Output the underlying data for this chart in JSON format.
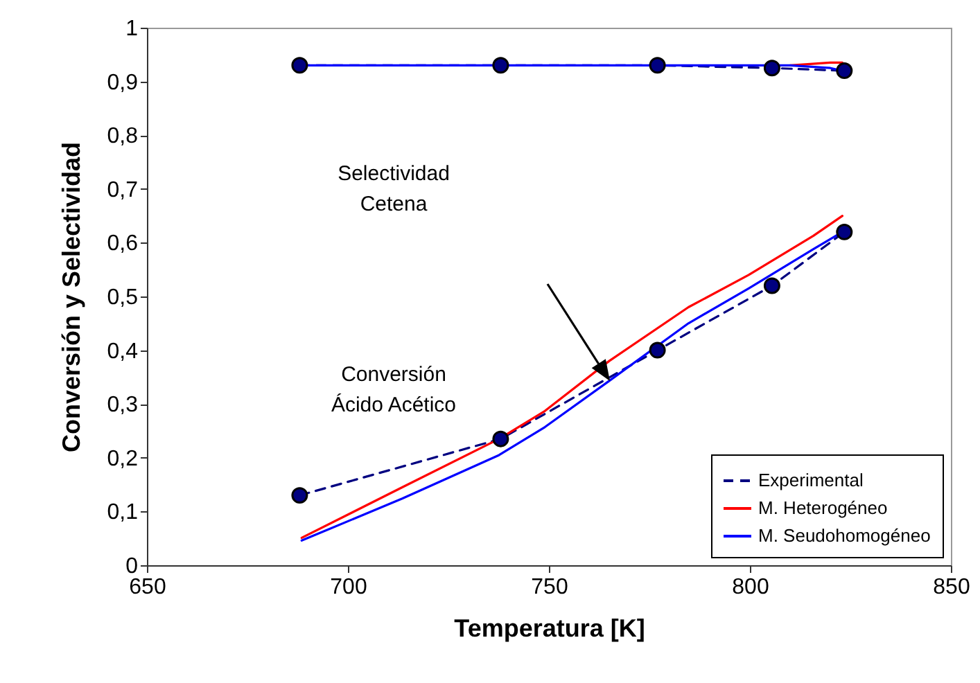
{
  "chart_data": {
    "type": "line",
    "xlabel": "Temperatura [K]",
    "ylabel": "Conversión y Selectividad",
    "xlim": [
      650,
      850
    ],
    "xticks": [
      650,
      700,
      750,
      800,
      850
    ],
    "ylim": [
      0,
      1
    ],
    "yticks": [
      0,
      {
        "value": 0.1,
        "label": "0,1"
      },
      {
        "value": 0.2,
        "label": "0,2"
      },
      {
        "value": 0.3,
        "label": "0,3"
      },
      {
        "value": 0.4,
        "label": "0,4"
      },
      {
        "value": 0.5,
        "label": "0,5"
      },
      {
        "value": 0.6,
        "label": "0,6"
      },
      {
        "value": 0.7,
        "label": "0,7"
      },
      {
        "value": 0.8,
        "label": "0,8"
      },
      {
        "value": 0.9,
        "label": "0,9"
      },
      1
    ],
    "grid": false,
    "legend": "bottom right",
    "annotations": [
      "Selectividad Cetena",
      "Conversión Ácido Acético"
    ],
    "series": [
      {
        "name": "Experimental",
        "color": "#000080",
        "line_style": "dashed",
        "marker": "circle",
        "x": [
          688,
          738,
          777,
          805.5,
          823.5
        ],
        "values": [
          0.13,
          0.235,
          0.4,
          0.52,
          0.62
        ]
      },
      {
        "name": "M. Heterogéneo",
        "color": "#ff0000",
        "line_style": "solid",
        "marker": "none",
        "x": [
          688.5,
          713.5,
          737.6,
          749,
          765,
          784.7,
          799.7,
          815.8,
          823
        ],
        "values": [
          0.051,
          0.145,
          0.235,
          0.287,
          0.38,
          0.48,
          0.54,
          0.613,
          0.65
        ]
      },
      {
        "name": "M. Seudohomogéneo",
        "color": "#0000ff",
        "line_style": "solid",
        "marker": "none",
        "x": [
          688.5,
          713.5,
          737.6,
          749,
          765,
          784.7,
          799.7,
          815.8,
          823
        ],
        "values": [
          0.046,
          0.124,
          0.205,
          0.257,
          0.343,
          0.45,
          0.515,
          0.588,
          0.62
        ]
      },
      {
        "color": "#000080",
        "line_style": "dashed",
        "marker": "circle",
        "x": [
          688,
          738,
          777,
          805.5,
          823.5
        ],
        "values": [
          0.93,
          0.93,
          0.93,
          0.925,
          0.92
        ]
      },
      {
        "color": "#ff0000",
        "line_style": "solid",
        "marker": "none",
        "x": [
          810,
          820,
          823
        ],
        "values": [
          0.93,
          0.935,
          0.935
        ]
      },
      {
        "color": "#0000ff",
        "line_style": "solid",
        "marker": "none",
        "x": [
          688,
          738,
          777,
          810,
          820,
          823
        ],
        "values": [
          0.93,
          0.93,
          0.93,
          0.93,
          0.925,
          0.92
        ]
      }
    ]
  }
}
